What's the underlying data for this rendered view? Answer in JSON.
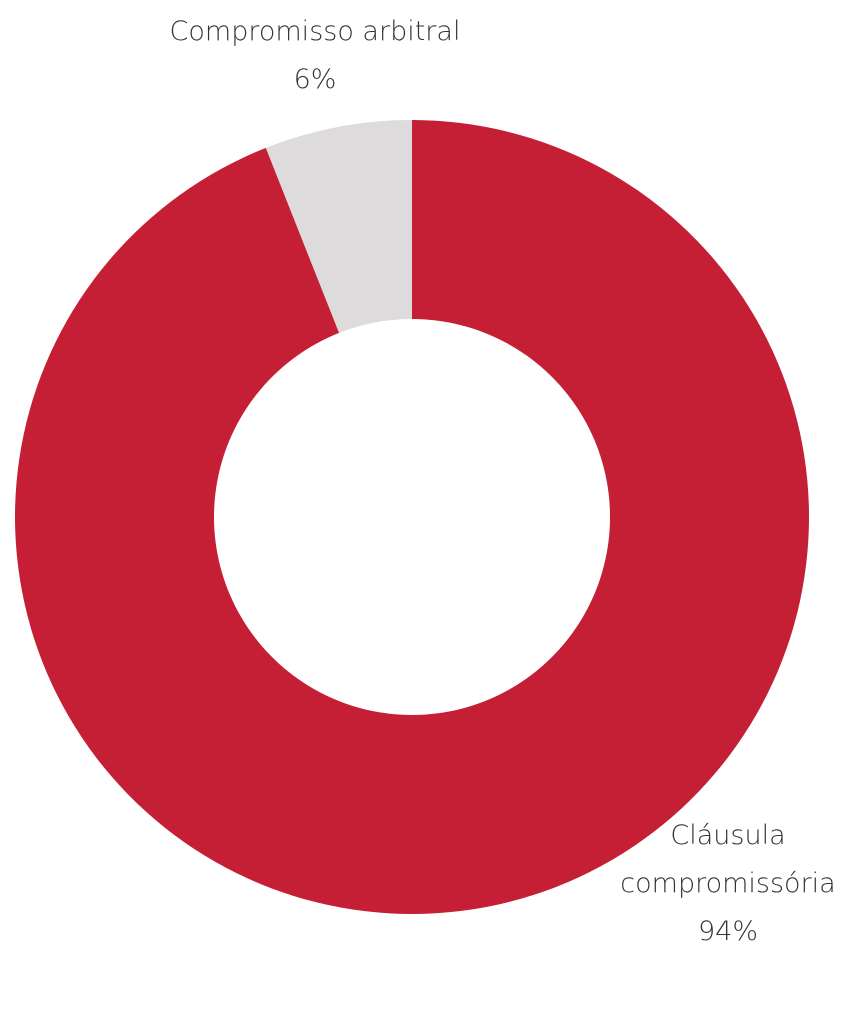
{
  "chart_data": {
    "type": "donut",
    "categories": [
      "Cláusula compromissória",
      "Compromisso arbitral"
    ],
    "values": [
      94,
      6
    ],
    "value_labels": [
      "94%",
      "6%"
    ],
    "colors": [
      "#c41f35",
      "#dddbdc"
    ]
  }
}
